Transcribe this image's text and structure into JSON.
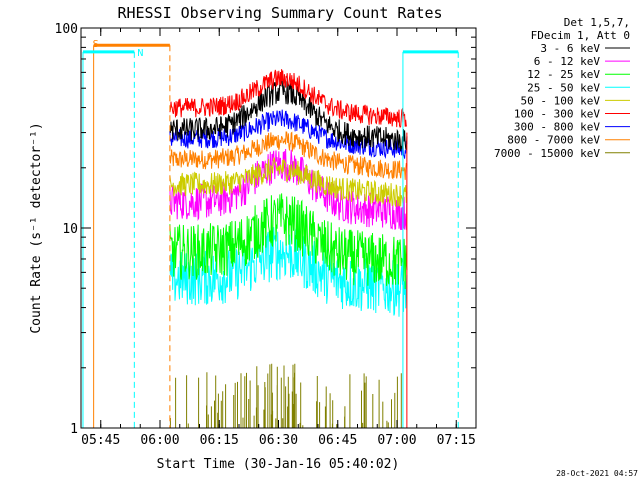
{
  "chart_data": {
    "type": "line",
    "title": "RHESSI Observing Summary Count Rates",
    "xlabel": "Start Time (30-Jan-16 05:40:02)",
    "ylabel": "Count Rate (s⁻¹ detector⁻¹)",
    "yscale": "log",
    "ylim": [
      1,
      100
    ],
    "xlim_minutes": [
      0,
      100
    ],
    "x_ticks": [
      {
        "label": "05:45",
        "minutes": 5
      },
      {
        "label": "06:00",
        "minutes": 20
      },
      {
        "label": "06:15",
        "minutes": 35
      },
      {
        "label": "06:30",
        "minutes": 50
      },
      {
        "label": "06:45",
        "minutes": 65
      },
      {
        "label": "07:00",
        "minutes": 80
      },
      {
        "label": "07:15",
        "minutes": 95
      }
    ],
    "y_ticks": [
      {
        "label": "1",
        "value": 1
      },
      {
        "label": "10",
        "value": 10
      },
      {
        "label": "100",
        "value": 100
      }
    ],
    "legend": {
      "placement": "right",
      "header": [
        "Det 1,5,7,",
        "FDecim 1, Att 0"
      ]
    },
    "series": [
      {
        "name": "3 - 6 keV",
        "color": "#000000",
        "base": 31,
        "peak": 1.55,
        "noise": 0.06
      },
      {
        "name": "6 - 12 keV",
        "color": "#ff00ff",
        "base": 13.5,
        "peak": 1.55,
        "noise": 0.09
      },
      {
        "name": "12 - 25 keV",
        "color": "#00ff00",
        "base": 7.6,
        "peak": 1.45,
        "noise": 0.14
      },
      {
        "name": "25 - 50 keV",
        "color": "#00ffff",
        "base": 5.6,
        "peak": 1.35,
        "noise": 0.14
      },
      {
        "name": "50 - 100 keV",
        "color": "#cccc00",
        "base": 16.5,
        "peak": 1.2,
        "noise": 0.06
      },
      {
        "name": "100 - 300 keV",
        "color": "#ff0000",
        "base": 40,
        "peak": 1.4,
        "noise": 0.05
      },
      {
        "name": "300 - 800 keV",
        "color": "#0000ff",
        "base": 28,
        "peak": 1.25,
        "noise": 0.05
      },
      {
        "name": "800 - 7000 keV",
        "color": "#ff8000",
        "base": 22,
        "peak": 1.25,
        "noise": 0.05
      },
      {
        "name": "7000 - 15000 keV",
        "color": "#808000",
        "base": 1,
        "peak": 1,
        "noise": 0
      }
    ],
    "data_window_minutes": [
      22.5,
      82.5
    ],
    "peak_center_minutes": 51,
    "flags": [
      {
        "name": "S",
        "color": "#ff8000",
        "start_minutes": 3.2,
        "end_minutes": 22.5,
        "level": 82
      },
      {
        "name": "N",
        "color": "#00ffff",
        "start_minutes": 0.5,
        "end_minutes": 13.5,
        "level": 76
      },
      {
        "name": "N2",
        "color": "#00ffff",
        "start_minutes": 81.5,
        "end_minutes": 95.5,
        "level": 76
      }
    ],
    "timestamp": "28-Oct-2021 04:57"
  }
}
